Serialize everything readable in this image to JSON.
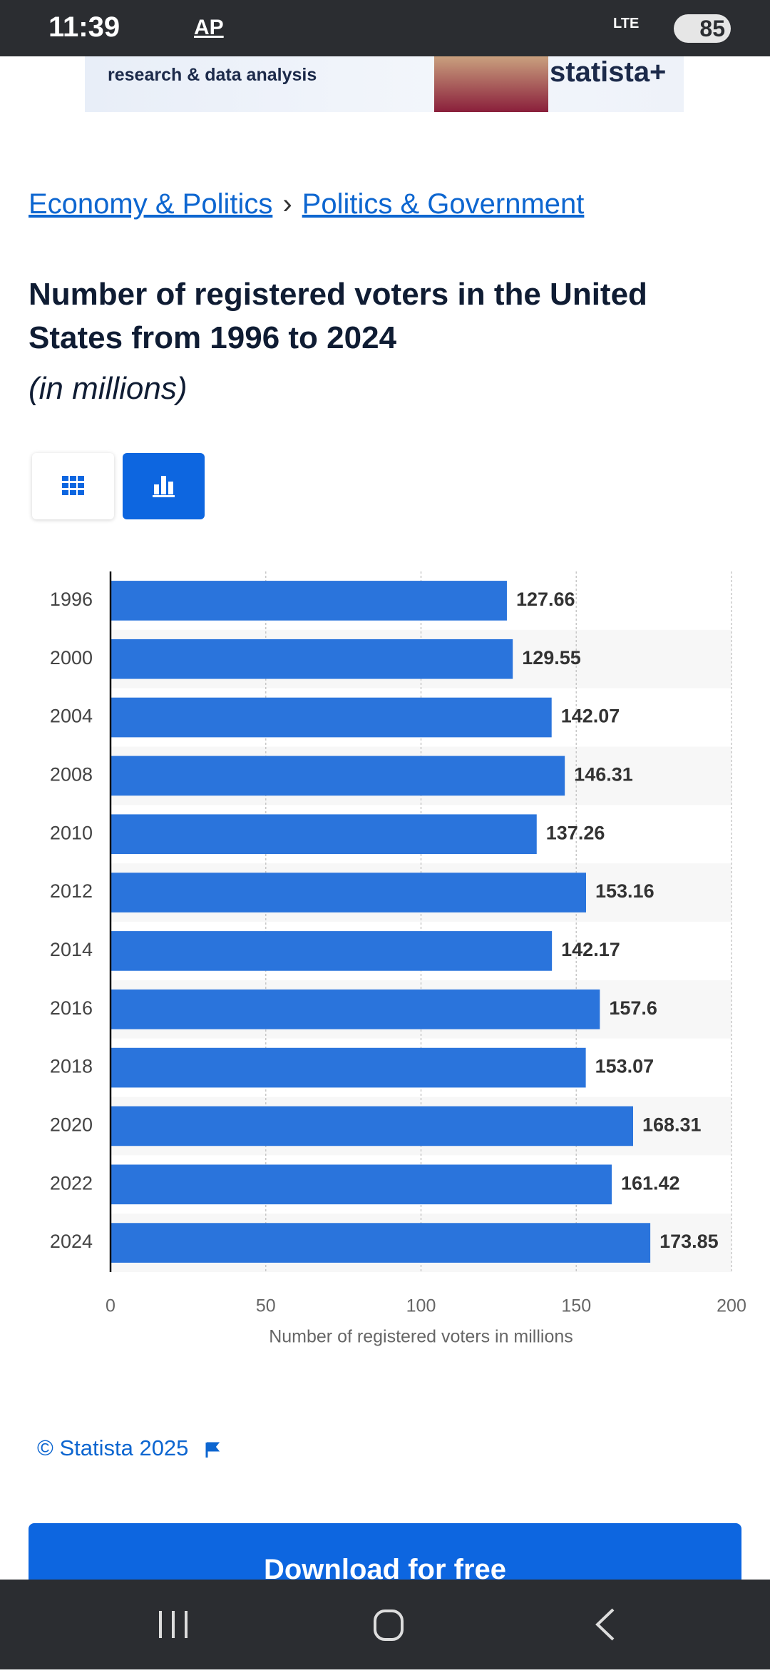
{
  "status_bar": {
    "time": "11:39",
    "ap": "AP",
    "network": "LTE",
    "battery": "85"
  },
  "ad": {
    "text": "research & data analysis",
    "brand": "statista+"
  },
  "breadcrumbs": [
    "Economy & Politics",
    "›",
    "Politics & Government"
  ],
  "copyright": "© Statista 2025",
  "download_button": "Download for free",
  "chart_data": {
    "type": "bar",
    "orientation": "horizontal",
    "title": "Number of registered voters in the United States from 1996 to 2024",
    "subtitle": "(in millions)",
    "categories": [
      "1996",
      "2000",
      "2004",
      "2008",
      "2010",
      "2012",
      "2014",
      "2016",
      "2018",
      "2020",
      "2022",
      "2024"
    ],
    "values": [
      127.66,
      129.55,
      142.07,
      146.31,
      137.26,
      153.16,
      142.17,
      157.6,
      153.07,
      168.31,
      161.42,
      173.85
    ],
    "color": "#2a74dc",
    "xlim": [
      0,
      200
    ],
    "xticks": [
      0,
      50,
      100,
      150,
      200
    ],
    "x_label": "Number of registered voters in millions",
    "grid": true
  }
}
